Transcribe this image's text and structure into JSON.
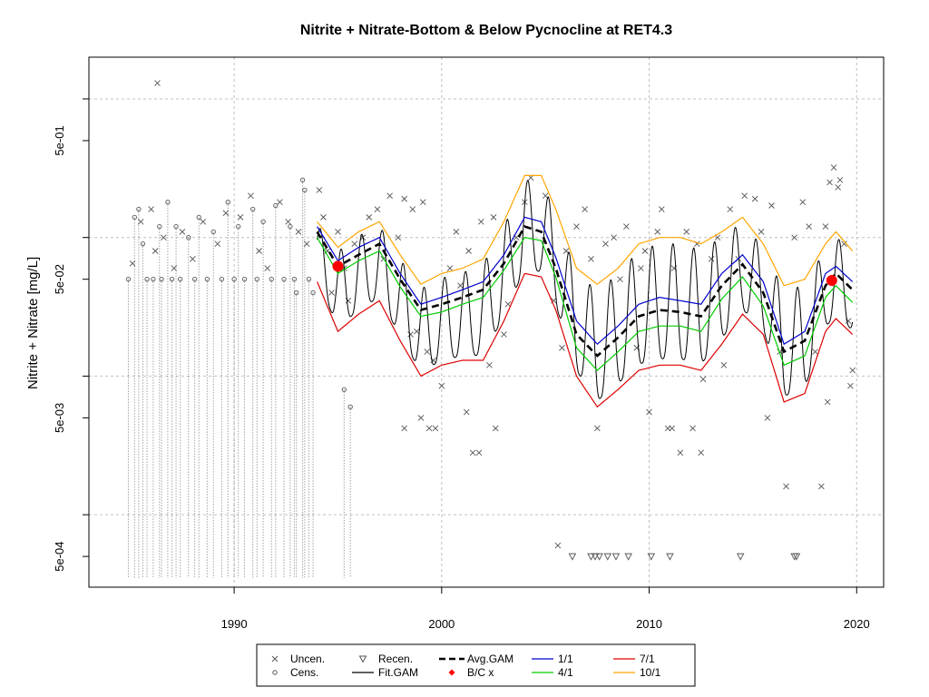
{
  "chart_data": {
    "type": "scatter",
    "title": "Nitrite + Nitrate-Bottom & Below Pycnocline at RET4.3",
    "ylabel": "Nitrite + Nitrate [mg/L]",
    "xlabel": "",
    "x_ticks": [
      "1990",
      "2000",
      "2010",
      "2020"
    ],
    "y_ticks": [
      "5e-04",
      "5e-03",
      "5e-02",
      "5e-01"
    ],
    "y_scale": "log",
    "xlim": [
      1983.0,
      2021.3
    ],
    "ylim": [
      0.0003,
      2.0
    ],
    "grid": true,
    "legend_position": "bottom",
    "legend": [
      "Uncen.",
      "Cens.",
      "Recen.",
      "Fit.GAM",
      "Avg.GAM",
      "B/C x",
      "1/1",
      "4/1",
      "7/1",
      "10/1"
    ],
    "colors": {
      "points": "#555555",
      "fit_gam": "#000000",
      "avg_gam": "#000000",
      "bc": "#ff0000",
      "m1_1": "#0000cc",
      "m4_1": "#00cc00",
      "m7_1": "#dd0000",
      "m10_1": "#ffa500"
    },
    "bc_points": [
      {
        "x": 1995.0,
        "y": 0.062
      },
      {
        "x": 2018.8,
        "y": 0.049
      }
    ],
    "curves": {
      "avg_gam": [
        [
          1994.0,
          0.11
        ],
        [
          1995.0,
          0.062
        ],
        [
          1996.0,
          0.075
        ],
        [
          1997.0,
          0.09
        ],
        [
          1998.0,
          0.05
        ],
        [
          1999.0,
          0.03
        ],
        [
          2000.0,
          0.033
        ],
        [
          2001.0,
          0.037
        ],
        [
          2002.0,
          0.042
        ],
        [
          2003.0,
          0.065
        ],
        [
          2004.0,
          0.12
        ],
        [
          2004.8,
          0.11
        ],
        [
          2005.5,
          0.06
        ],
        [
          2006.5,
          0.02
        ],
        [
          2007.5,
          0.014
        ],
        [
          2008.5,
          0.019
        ],
        [
          2009.5,
          0.027
        ],
        [
          2010.5,
          0.03
        ],
        [
          2011.5,
          0.029
        ],
        [
          2012.5,
          0.027
        ],
        [
          2013.5,
          0.045
        ],
        [
          2014.5,
          0.064
        ],
        [
          2015.5,
          0.04
        ],
        [
          2016.5,
          0.015
        ],
        [
          2017.5,
          0.018
        ],
        [
          2018.5,
          0.045
        ],
        [
          2019.0,
          0.055
        ],
        [
          2019.8,
          0.042
        ]
      ],
      "m1_1": [
        [
          1994.0,
          0.12
        ],
        [
          1995.0,
          0.068
        ],
        [
          1996.0,
          0.085
        ],
        [
          1997.0,
          0.1
        ],
        [
          1998.0,
          0.055
        ],
        [
          1999.0,
          0.033
        ],
        [
          2000.0,
          0.037
        ],
        [
          2001.0,
          0.042
        ],
        [
          2002.0,
          0.048
        ],
        [
          2003.0,
          0.075
        ],
        [
          2004.0,
          0.14
        ],
        [
          2004.8,
          0.13
        ],
        [
          2005.5,
          0.072
        ],
        [
          2006.5,
          0.025
        ],
        [
          2007.5,
          0.017
        ],
        [
          2008.5,
          0.023
        ],
        [
          2009.5,
          0.033
        ],
        [
          2010.5,
          0.037
        ],
        [
          2011.5,
          0.035
        ],
        [
          2012.5,
          0.033
        ],
        [
          2013.5,
          0.055
        ],
        [
          2014.5,
          0.075
        ],
        [
          2015.5,
          0.048
        ],
        [
          2016.5,
          0.017
        ],
        [
          2017.5,
          0.021
        ],
        [
          2018.5,
          0.055
        ],
        [
          2019.0,
          0.062
        ],
        [
          2019.8,
          0.048
        ]
      ],
      "m4_1": [
        [
          1994.0,
          0.1
        ],
        [
          1995.0,
          0.055
        ],
        [
          1996.0,
          0.068
        ],
        [
          1997.0,
          0.08
        ],
        [
          1998.0,
          0.044
        ],
        [
          1999.0,
          0.027
        ],
        [
          2000.0,
          0.029
        ],
        [
          2001.0,
          0.033
        ],
        [
          2002.0,
          0.037
        ],
        [
          2003.0,
          0.058
        ],
        [
          2004.0,
          0.1
        ],
        [
          2004.8,
          0.095
        ],
        [
          2005.5,
          0.052
        ],
        [
          2006.5,
          0.016
        ],
        [
          2007.5,
          0.011
        ],
        [
          2008.5,
          0.015
        ],
        [
          2009.5,
          0.021
        ],
        [
          2010.5,
          0.023
        ],
        [
          2011.5,
          0.023
        ],
        [
          2012.5,
          0.021
        ],
        [
          2013.5,
          0.036
        ],
        [
          2014.5,
          0.052
        ],
        [
          2015.5,
          0.032
        ],
        [
          2016.5,
          0.012
        ],
        [
          2017.5,
          0.014
        ],
        [
          2018.5,
          0.037
        ],
        [
          2019.0,
          0.045
        ],
        [
          2019.8,
          0.034
        ]
      ],
      "m7_1": [
        [
          1994.0,
          0.048
        ],
        [
          1995.0,
          0.021
        ],
        [
          1996.0,
          0.028
        ],
        [
          1997.0,
          0.035
        ],
        [
          1998.0,
          0.018
        ],
        [
          1999.0,
          0.01
        ],
        [
          2000.0,
          0.012
        ],
        [
          2001.0,
          0.013
        ],
        [
          2002.0,
          0.013
        ],
        [
          2003.0,
          0.025
        ],
        [
          2004.0,
          0.055
        ],
        [
          2004.8,
          0.052
        ],
        [
          2005.5,
          0.03
        ],
        [
          2006.5,
          0.01
        ],
        [
          2007.5,
          0.006
        ],
        [
          2008.5,
          0.008
        ],
        [
          2009.5,
          0.011
        ],
        [
          2010.5,
          0.012
        ],
        [
          2011.5,
          0.012
        ],
        [
          2012.5,
          0.011
        ],
        [
          2013.5,
          0.017
        ],
        [
          2014.5,
          0.028
        ],
        [
          2015.5,
          0.02
        ],
        [
          2016.5,
          0.0065
        ],
        [
          2017.5,
          0.0075
        ],
        [
          2018.5,
          0.021
        ],
        [
          2019.0,
          0.026
        ],
        [
          2019.8,
          0.02
        ]
      ],
      "m10_1": [
        [
          1994.0,
          0.13
        ],
        [
          1995.0,
          0.085
        ],
        [
          1996.0,
          0.11
        ],
        [
          1997.0,
          0.13
        ],
        [
          1998.0,
          0.075
        ],
        [
          1999.0,
          0.046
        ],
        [
          2000.0,
          0.055
        ],
        [
          2001.0,
          0.06
        ],
        [
          2002.0,
          0.07
        ],
        [
          2003.0,
          0.13
        ],
        [
          2004.0,
          0.28
        ],
        [
          2004.8,
          0.28
        ],
        [
          2005.5,
          0.16
        ],
        [
          2006.5,
          0.06
        ],
        [
          2007.5,
          0.046
        ],
        [
          2008.5,
          0.06
        ],
        [
          2009.5,
          0.09
        ],
        [
          2010.5,
          0.1
        ],
        [
          2011.5,
          0.1
        ],
        [
          2012.5,
          0.09
        ],
        [
          2013.5,
          0.11
        ],
        [
          2014.5,
          0.14
        ],
        [
          2015.5,
          0.09
        ],
        [
          2016.5,
          0.045
        ],
        [
          2017.5,
          0.05
        ],
        [
          2018.5,
          0.09
        ],
        [
          2019.0,
          0.11
        ],
        [
          2019.8,
          0.08
        ]
      ]
    },
    "uncensored": [
      [
        1986.3,
        1.3
      ],
      [
        1985.1,
        0.065
      ],
      [
        1985.5,
        0.13
      ],
      [
        1986.0,
        0.16
      ],
      [
        1986.2,
        0.08
      ],
      [
        1986.6,
        0.1
      ],
      [
        1987.1,
        0.06
      ],
      [
        1987.5,
        0.11
      ],
      [
        1988.0,
        0.07
      ],
      [
        1988.5,
        0.13
      ],
      [
        1989.2,
        0.09
      ],
      [
        1989.6,
        0.15
      ],
      [
        1990.3,
        0.14
      ],
      [
        1990.8,
        0.2
      ],
      [
        1991.2,
        0.08
      ],
      [
        1991.6,
        0.06
      ],
      [
        1992.2,
        0.18
      ],
      [
        1992.6,
        0.13
      ],
      [
        1993.1,
        0.11
      ],
      [
        1993.5,
        0.09
      ],
      [
        1994.1,
        0.22
      ],
      [
        1994.3,
        0.14
      ],
      [
        1994.5,
        0.08
      ],
      [
        1994.7,
        0.04
      ],
      [
        1995.0,
        0.11
      ],
      [
        1995.3,
        0.06
      ],
      [
        1995.5,
        0.035
      ],
      [
        1995.8,
        0.09
      ],
      [
        1996.2,
        0.1
      ],
      [
        1996.5,
        0.14
      ],
      [
        1996.9,
        0.16
      ],
      [
        1997.2,
        0.07
      ],
      [
        1997.5,
        0.2
      ],
      [
        1997.9,
        0.1
      ],
      [
        1998.2,
        0.19
      ],
      [
        1998.6,
        0.16
      ],
      [
        1999.1,
        0.18
      ],
      [
        1998.5,
        0.02
      ],
      [
        1999.0,
        0.005
      ],
      [
        1999.4,
        0.0042
      ],
      [
        1998.8,
        0.021
      ],
      [
        1999.3,
        0.015
      ],
      [
        1999.6,
        0.013
      ],
      [
        1999.7,
        0.0042
      ],
      [
        1998.2,
        0.0042
      ],
      [
        2000.0,
        0.0085
      ],
      [
        2000.4,
        0.06
      ],
      [
        2000.7,
        0.11
      ],
      [
        2000.9,
        0.045
      ],
      [
        2001.2,
        0.0055
      ],
      [
        2001.3,
        0.08
      ],
      [
        2001.5,
        0.0028
      ],
      [
        2001.8,
        0.0028
      ],
      [
        2001.9,
        0.13
      ],
      [
        2002.3,
        0.012
      ],
      [
        2002.5,
        0.14
      ],
      [
        2002.6,
        0.0042
      ],
      [
        2003.0,
        0.02
      ],
      [
        2003.2,
        0.033
      ],
      [
        2003.6,
        0.1
      ],
      [
        2004.0,
        0.18
      ],
      [
        2004.3,
        0.27
      ],
      [
        2005.0,
        0.2
      ],
      [
        2005.4,
        0.035
      ],
      [
        2005.6,
        0.0006
      ],
      [
        2005.8,
        0.016
      ],
      [
        2006.0,
        0.08
      ],
      [
        2006.5,
        0.12
      ],
      [
        2006.9,
        0.16
      ],
      [
        2007.2,
        0.07
      ],
      [
        2007.5,
        0.0042
      ],
      [
        2007.9,
        0.09
      ],
      [
        2008.3,
        0.1
      ],
      [
        2008.6,
        0.05
      ],
      [
        2008.9,
        0.12
      ],
      [
        2009.4,
        0.016
      ],
      [
        2009.6,
        0.06
      ],
      [
        2009.8,
        0.08
      ],
      [
        2010.0,
        0.0055
      ],
      [
        2010.4,
        0.11
      ],
      [
        2010.6,
        0.16
      ],
      [
        2010.9,
        0.0042
      ],
      [
        2011.1,
        0.0042
      ],
      [
        2011.2,
        0.06
      ],
      [
        2011.5,
        0.0028
      ],
      [
        2011.8,
        0.11
      ],
      [
        2012.1,
        0.0042
      ],
      [
        2012.3,
        0.09
      ],
      [
        2012.5,
        0.0028
      ],
      [
        2012.6,
        0.0095
      ],
      [
        2013.0,
        0.07
      ],
      [
        2013.3,
        0.1
      ],
      [
        2013.6,
        0.012
      ],
      [
        2013.9,
        0.16
      ],
      [
        2014.3,
        0.07
      ],
      [
        2014.6,
        0.2
      ],
      [
        2015.1,
        0.19
      ],
      [
        2015.4,
        0.11
      ],
      [
        2015.7,
        0.005
      ],
      [
        2015.9,
        0.17
      ],
      [
        2016.3,
        0.015
      ],
      [
        2016.6,
        0.0016
      ],
      [
        2017.0,
        0.1
      ],
      [
        2017.4,
        0.18
      ],
      [
        2017.7,
        0.12
      ],
      [
        2018.0,
        0.015
      ],
      [
        2018.3,
        0.0016
      ],
      [
        2018.5,
        0.12
      ],
      [
        2018.7,
        0.25
      ],
      [
        2018.9,
        0.32
      ],
      [
        2019.1,
        0.23
      ],
      [
        2019.2,
        0.26
      ],
      [
        2019.4,
        0.09
      ],
      [
        2019.6,
        0.025
      ],
      [
        2019.7,
        0.0085
      ],
      [
        2019.8,
        0.011
      ],
      [
        2018.6,
        0.0065
      ]
    ],
    "censored": [
      [
        1984.9,
        0.05
      ],
      [
        1985.2,
        0.14
      ],
      [
        1985.4,
        0.16
      ],
      [
        1985.6,
        0.09
      ],
      [
        1985.8,
        0.05
      ],
      [
        1986.1,
        0.05
      ],
      [
        1986.4,
        0.12
      ],
      [
        1986.5,
        0.05
      ],
      [
        1986.8,
        0.18
      ],
      [
        1987.0,
        0.05
      ],
      [
        1987.2,
        0.12
      ],
      [
        1987.4,
        0.05
      ],
      [
        1987.8,
        0.1
      ],
      [
        1988.1,
        0.05
      ],
      [
        1988.3,
        0.14
      ],
      [
        1988.7,
        0.05
      ],
      [
        1989.0,
        0.11
      ],
      [
        1989.4,
        0.05
      ],
      [
        1989.7,
        0.18
      ],
      [
        1990.0,
        0.05
      ],
      [
        1990.2,
        0.12
      ],
      [
        1990.5,
        0.05
      ],
      [
        1990.9,
        0.16
      ],
      [
        1991.1,
        0.05
      ],
      [
        1991.4,
        0.13
      ],
      [
        1991.8,
        0.05
      ],
      [
        1992.0,
        0.17
      ],
      [
        1992.4,
        0.05
      ],
      [
        1992.7,
        0.12
      ],
      [
        1992.9,
        0.05
      ],
      [
        1993.0,
        0.04
      ],
      [
        1993.3,
        0.26
      ],
      [
        1993.4,
        0.22
      ],
      [
        1993.6,
        0.05
      ],
      [
        1993.8,
        0.04
      ],
      [
        1995.6,
        0.006
      ],
      [
        1995.3,
        0.008
      ]
    ],
    "recensored": [
      [
        2006.3,
        0.0005
      ],
      [
        2007.2,
        0.0005
      ],
      [
        2007.4,
        0.0005
      ],
      [
        2007.6,
        0.0005
      ],
      [
        2008.0,
        0.0005
      ],
      [
        2008.4,
        0.0005
      ],
      [
        2009.0,
        0.0005
      ],
      [
        2010.1,
        0.0005
      ],
      [
        2011.0,
        0.0005
      ],
      [
        2014.4,
        0.0005
      ],
      [
        2017.0,
        0.0005
      ],
      [
        2017.1,
        0.0005
      ]
    ]
  }
}
